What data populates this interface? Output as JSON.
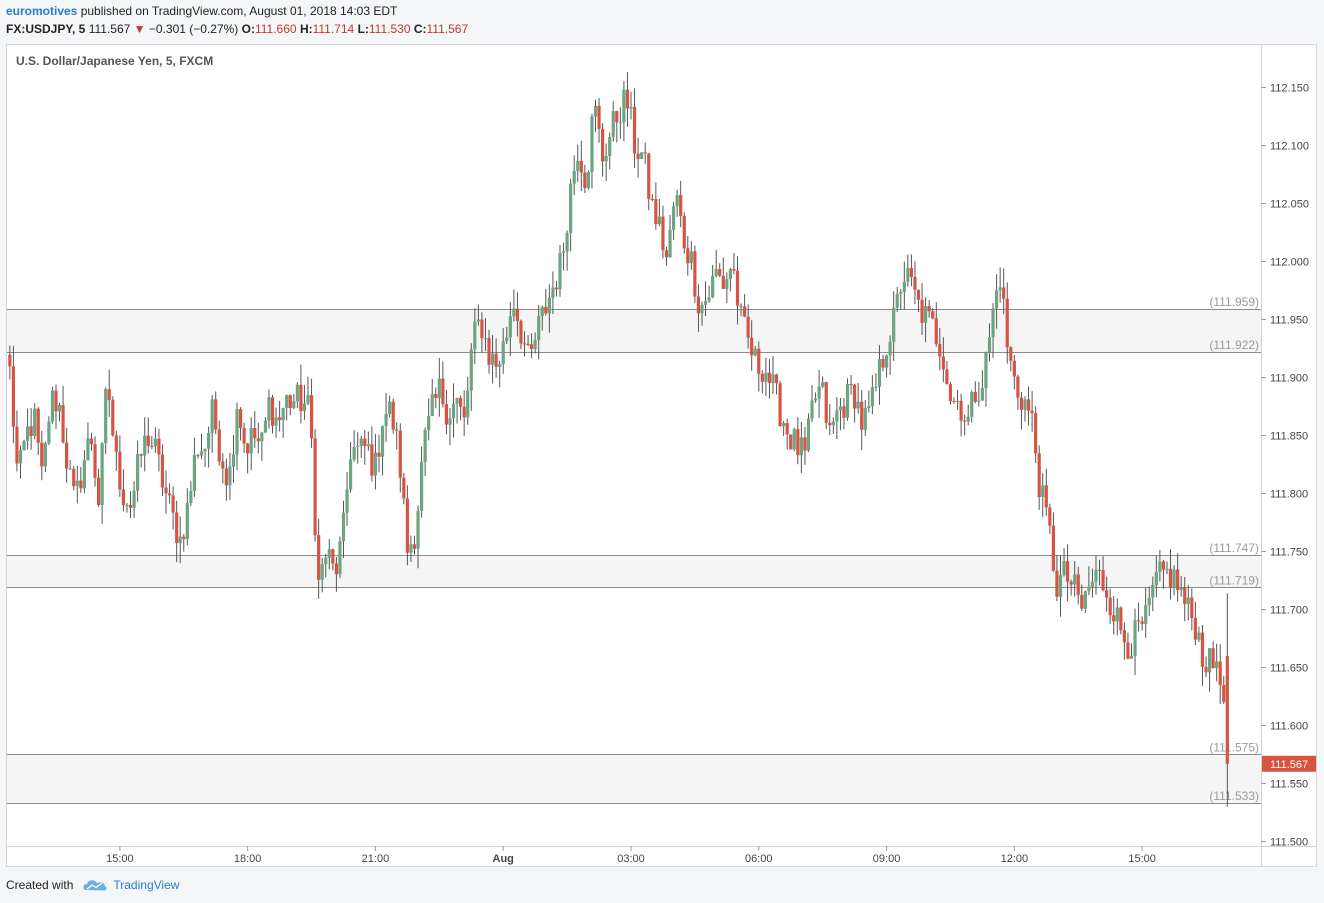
{
  "header": {
    "author": "euromotives",
    "published_text": "published on TradingView.com, August 01, 2018 14:03 EDT",
    "symbol_prefix": "FX:USDJPY, 5",
    "last": "111.567",
    "change_arrow": "▼",
    "change": "−0.301 (−0.27%)",
    "open_label": "O:",
    "open": "111.660",
    "high_label": "H:",
    "high": "111.714",
    "low_label": "L:",
    "low": "111.530",
    "close_label": "C:",
    "close": "111.567"
  },
  "footer": {
    "created_with": "Created with",
    "brand": "TradingView",
    "logo_icon": "tradingview-cloud-icon"
  },
  "chart_data": {
    "type": "candlestick",
    "title": "U.S. Dollar/Japanese Yen, 5, FXCM",
    "y_axis_side": "right",
    "ylim": [
      111.5,
      112.17
    ],
    "y_ticks": [
      "111.500",
      "111.550",
      "111.600",
      "111.650",
      "111.700",
      "111.750",
      "111.800",
      "111.850",
      "111.900",
      "111.950",
      "112.000",
      "112.050",
      "112.100",
      "112.150"
    ],
    "x_range_hours": [
      12.35,
      41.65
    ],
    "x_ticks": [
      {
        "label": "15:00",
        "hour": 15
      },
      {
        "label": "18:00",
        "hour": 18
      },
      {
        "label": "21:00",
        "hour": 21
      },
      {
        "label": "Aug",
        "hour": 24,
        "bold": true
      },
      {
        "label": "03:00",
        "hour": 27
      },
      {
        "label": "06:00",
        "hour": 30
      },
      {
        "label": "09:00",
        "hour": 33
      },
      {
        "label": "12:00",
        "hour": 36
      },
      {
        "label": "15:00",
        "hour": 39
      }
    ],
    "bands": [
      {
        "top": 111.959,
        "bottom": 111.922,
        "top_label": "(111.959)",
        "bottom_label": "(111.922)"
      },
      {
        "top": 111.747,
        "bottom": 111.719,
        "top_label": "(111.747)",
        "bottom_label": "(111.719)"
      },
      {
        "top": 111.575,
        "bottom": 111.533,
        "top_label": "(111.575)",
        "bottom_label": "(111.533)"
      }
    ],
    "last_price": {
      "value": 111.567,
      "label": "111.567"
    },
    "candle_interval_minutes": 5,
    "first_candle_hour": 12.4167,
    "close_path": [
      111.905,
      111.81,
      111.85,
      111.865,
      111.81,
      111.88,
      111.88,
      111.83,
      111.79,
      111.825,
      111.85,
      111.79,
      111.9,
      111.83,
      111.8,
      111.79,
      111.83,
      111.85,
      111.835,
      111.805,
      111.78,
      111.76,
      111.79,
      111.84,
      111.84,
      111.87,
      111.835,
      111.81,
      111.88,
      111.84,
      111.85,
      111.84,
      111.88,
      111.86,
      111.88,
      111.88,
      111.88,
      111.87,
      111.72,
      111.75,
      111.73,
      111.76,
      111.84,
      111.835,
      111.84,
      111.82,
      111.87,
      111.87,
      111.83,
      111.75,
      111.77,
      111.84,
      111.87,
      111.89,
      111.87,
      111.88,
      111.86,
      111.93,
      111.95,
      111.92,
      111.91,
      111.93,
      111.97,
      111.94,
      111.91,
      111.94,
      111.96,
      111.98,
      112.0,
      112.06,
      112.1,
      112.07,
      112.135,
      112.09,
      112.11,
      112.13,
      112.14,
      112.1,
      112.09,
      112.05,
      112.03,
      112.0,
      112.06,
      112.02,
      112.0,
      111.96,
      111.97,
      111.99,
      111.98,
      112.0,
      111.95,
      111.93,
      111.91,
      111.91,
      111.89,
      111.87,
      111.85,
      111.84,
      111.83,
      111.88,
      111.89,
      111.85,
      111.87,
      111.88,
      111.89,
      111.86,
      111.87,
      111.9,
      111.93,
      111.95,
      111.99,
      111.98,
      111.96,
      111.95,
      111.94,
      111.92,
      111.88,
      111.88,
      111.86,
      111.89,
      111.9,
      111.95,
      111.99,
      111.92,
      111.89,
      111.88,
      111.86,
      111.8,
      111.77,
      111.72,
      111.73,
      111.72,
      111.7,
      111.72,
      111.73,
      111.72,
      111.7,
      111.68,
      111.67,
      111.68,
      111.69,
      111.72,
      111.73,
      111.73,
      111.72,
      111.7,
      111.69,
      111.66,
      111.65,
      111.66,
      111.567
    ],
    "session_high": 112.152,
    "session_low": 111.53
  }
}
